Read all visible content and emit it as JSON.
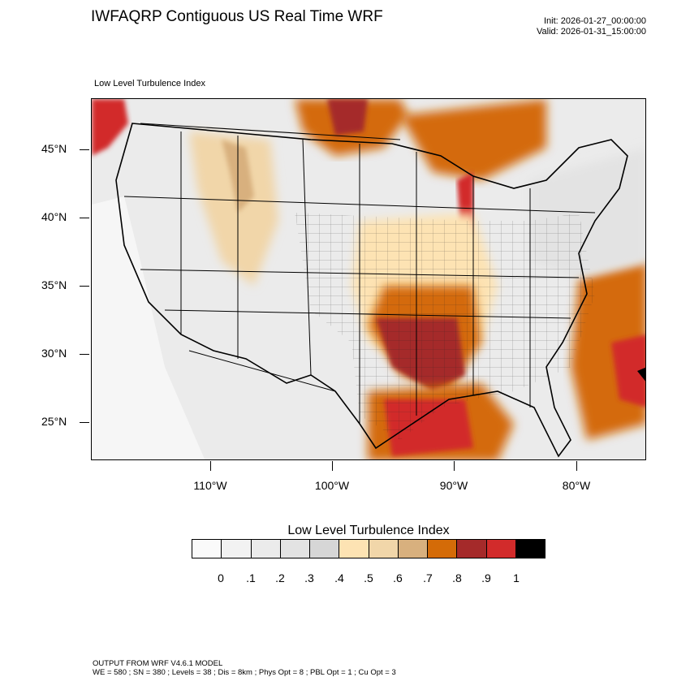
{
  "header": {
    "title": "IWFAQRP Contiguous US Real Time WRF",
    "init": "Init: 2026-01-27_00:00:00",
    "valid": "Valid: 2026-01-31_15:00:00",
    "field_label": "Low Level Turbulence Index"
  },
  "map": {
    "region": "Contiguous United States",
    "lat_labels": [
      "45°N",
      "40°N",
      "35°N",
      "30°N",
      "25°N"
    ],
    "lon_labels": [
      "110°W",
      "100°W",
      "90°W",
      "80°W"
    ]
  },
  "legend": {
    "title": "Low Level Turbulence Index",
    "tick_labels": [
      "0",
      ".1",
      ".2",
      ".3",
      ".4",
      ".5",
      ".6",
      ".7",
      ".8",
      ".9",
      "1"
    ],
    "colors": [
      "#fafafa",
      "#f2f2f2",
      "#ebebeb",
      "#e3e3e3",
      "#d6d6d6",
      "#fde3b3",
      "#f1d6a9",
      "#d8b07e",
      "#d46b08",
      "#a52a2a",
      "#d22b2b",
      "#000000"
    ]
  },
  "footer": {
    "line1": "OUTPUT FROM WRF V4.6.1 MODEL",
    "line2": "WE = 580 ; SN = 380 ; Levels = 38 ; Dis = 8km ; Phys Opt = 8 ; PBL Opt = 1 ; Cu Opt = 3"
  }
}
